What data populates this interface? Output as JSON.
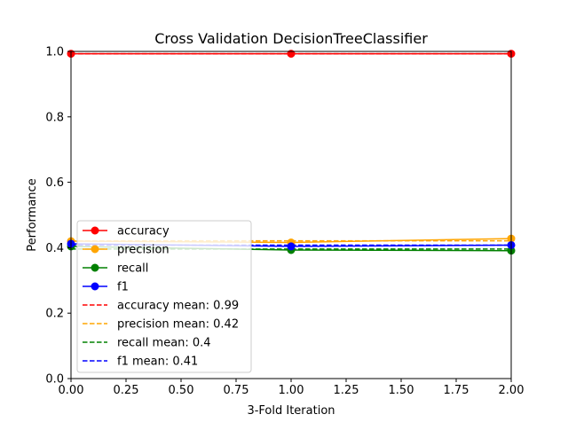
{
  "chart_data": {
    "type": "line",
    "title": "Cross Validation DecisionTreeClassifier",
    "xlabel": "3-Fold Iteration",
    "ylabel": "Performance",
    "xlim": [
      0,
      2
    ],
    "ylim": [
      0,
      1
    ],
    "x": [
      0,
      1,
      2
    ],
    "xticks": [
      0,
      0.25,
      0.5,
      0.75,
      1,
      1.25,
      1.5,
      1.75,
      2
    ],
    "xtick_labels": [
      "0.00",
      "0.25",
      "0.50",
      "0.75",
      "1.00",
      "1.25",
      "1.50",
      "1.75",
      "2.00"
    ],
    "yticks": [
      0,
      0.2,
      0.4,
      0.6,
      0.8,
      1
    ],
    "ytick_labels": [
      "0.0",
      "0.2",
      "0.4",
      "0.6",
      "0.8",
      "1.0"
    ],
    "grid": false,
    "legend_position": "lower-left",
    "series": [
      {
        "name": "accuracy",
        "values": [
          0.993,
          0.993,
          0.993
        ],
        "color": "#ff0000",
        "style": "solid-marker"
      },
      {
        "name": "precision",
        "values": [
          0.42,
          0.416,
          0.428
        ],
        "color": "#ffa500",
        "style": "solid-marker"
      },
      {
        "name": "recall",
        "values": [
          0.404,
          0.393,
          0.391
        ],
        "color": "#008000",
        "style": "solid-marker"
      },
      {
        "name": "f1",
        "values": [
          0.412,
          0.404,
          0.408
        ],
        "color": "#0000ff",
        "style": "solid-marker"
      }
    ],
    "means": [
      {
        "name": "accuracy mean: 0.99",
        "value": 0.993,
        "color": "#ff0000"
      },
      {
        "name": "precision mean: 0.42",
        "value": 0.421,
        "color": "#ffa500"
      },
      {
        "name": "recall mean: 0.4",
        "value": 0.396,
        "color": "#008000"
      },
      {
        "name": "f1 mean: 0.41",
        "value": 0.408,
        "color": "#0000ff"
      }
    ]
  }
}
